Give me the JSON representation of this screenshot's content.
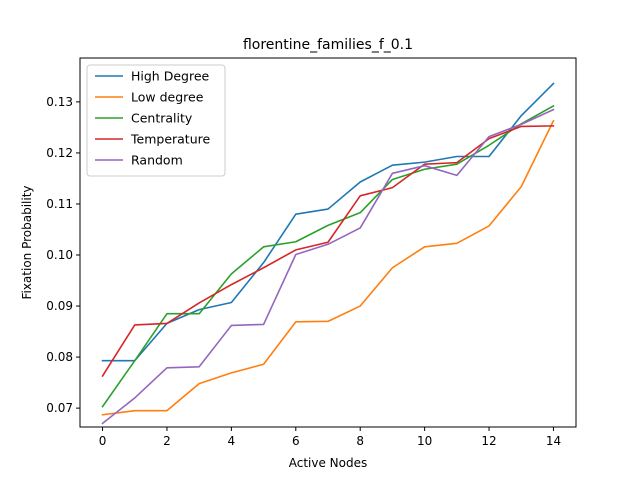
{
  "chart_data": {
    "type": "line",
    "title": "florentine_families_f_0.1",
    "xlabel": "Active Nodes",
    "ylabel": "Fixation Probability",
    "xlim": [
      -0.7,
      14.7
    ],
    "ylim": [
      0.0663,
      0.1386
    ],
    "xticks": [
      0,
      2,
      4,
      6,
      8,
      10,
      12,
      14
    ],
    "yticks": [
      0.07,
      0.08,
      0.09,
      0.1,
      0.11,
      0.12,
      0.13
    ],
    "ytick_labels": [
      "0.07",
      "0.08",
      "0.09",
      "0.10",
      "0.11",
      "0.12",
      "0.13"
    ],
    "grid": false,
    "legend_position": "upper-left",
    "x": [
      0,
      1,
      2,
      3,
      4,
      5,
      6,
      7,
      8,
      9,
      10,
      11,
      12,
      13,
      14
    ],
    "series": [
      {
        "name": "High Degree",
        "color": "#1f77b4",
        "values": [
          0.0793,
          0.0793,
          0.0866,
          0.0893,
          0.0907,
          0.0985,
          0.108,
          0.109,
          0.1143,
          0.1176,
          0.1182,
          0.1193,
          0.1193,
          0.1273,
          0.1336
        ]
      },
      {
        "name": "Low degree",
        "color": "#ff7f0e",
        "values": [
          0.0687,
          0.0695,
          0.0695,
          0.0748,
          0.0769,
          0.0786,
          0.0869,
          0.087,
          0.09,
          0.0975,
          0.1016,
          0.1023,
          0.1057,
          0.1134,
          0.1263
        ]
      },
      {
        "name": "Centrality",
        "color": "#2ca02c",
        "values": [
          0.0703,
          0.0793,
          0.0885,
          0.0885,
          0.0963,
          0.1016,
          0.1026,
          0.1058,
          0.1083,
          0.1148,
          0.1168,
          0.1178,
          0.1215,
          0.1257,
          0.1292
        ]
      },
      {
        "name": "Temperature",
        "color": "#d62728",
        "values": [
          0.0763,
          0.0863,
          0.0866,
          0.0906,
          0.0942,
          0.0975,
          0.101,
          0.1025,
          0.1116,
          0.1132,
          0.1178,
          0.1181,
          0.1228,
          0.1252,
          0.1253
        ]
      },
      {
        "name": "Random",
        "color": "#9467bd",
        "values": [
          0.067,
          0.072,
          0.0779,
          0.0781,
          0.0862,
          0.0864,
          0.1001,
          0.1021,
          0.1053,
          0.116,
          0.1175,
          0.1156,
          0.1232,
          0.1256,
          0.1285
        ]
      }
    ]
  }
}
